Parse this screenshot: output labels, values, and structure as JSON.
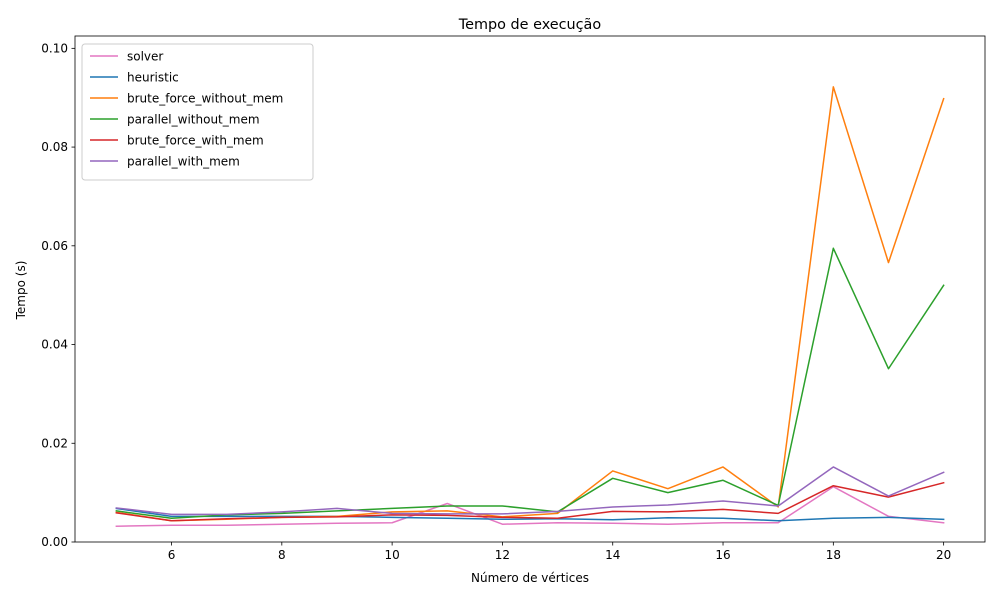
{
  "chart_data": {
    "type": "line",
    "title": "Tempo de execução",
    "xlabel": "Número de vértices",
    "ylabel": "Tempo (s)",
    "xlim": [
      4.25,
      20.75
    ],
    "ylim": [
      0,
      0.1025
    ],
    "xticks": [
      6,
      8,
      10,
      12,
      14,
      16,
      18,
      20
    ],
    "xtick_labels": [
      "6",
      "8",
      "10",
      "12",
      "14",
      "16",
      "18",
      "20"
    ],
    "yticks": [
      0,
      0.02,
      0.04,
      0.06,
      0.08,
      0.1
    ],
    "ytick_labels": [
      "0.00",
      "0.02",
      "0.04",
      "0.06",
      "0.08",
      "0.10"
    ],
    "grid": false,
    "legend_position": "top-left",
    "x": [
      5,
      6,
      7,
      8,
      9,
      10,
      11,
      12,
      13,
      14,
      15,
      16,
      17,
      18,
      19,
      20
    ],
    "series": [
      {
        "name": "solver",
        "color": "#e377c2",
        "values": [
          0.0032,
          0.0034,
          0.0034,
          0.0036,
          0.0038,
          0.0039,
          0.0078,
          0.0036,
          0.0039,
          0.0038,
          0.0036,
          0.0039,
          0.0039,
          0.0112,
          0.0052,
          0.0039
        ]
      },
      {
        "name": "heuristic",
        "color": "#1f77b4",
        "values": [
          0.0068,
          0.0052,
          0.0052,
          0.0052,
          0.0052,
          0.005,
          0.0048,
          0.0046,
          0.0047,
          0.0045,
          0.0049,
          0.0048,
          0.0043,
          0.0048,
          0.005,
          0.0046
        ]
      },
      {
        "name": "brute_force_without_mem",
        "color": "#ff7f0e",
        "values": [
          0.006,
          0.0043,
          0.0046,
          0.005,
          0.0052,
          0.0061,
          0.0063,
          0.0051,
          0.0058,
          0.0144,
          0.0108,
          0.0152,
          0.0071,
          0.0922,
          0.0566,
          0.0898
        ]
      },
      {
        "name": "parallel_without_mem",
        "color": "#2ca02c",
        "values": [
          0.0063,
          0.0048,
          0.0055,
          0.0058,
          0.0063,
          0.0068,
          0.0073,
          0.0073,
          0.0061,
          0.0129,
          0.01,
          0.0125,
          0.0074,
          0.0595,
          0.0351,
          0.052
        ]
      },
      {
        "name": "brute_force_with_mem",
        "color": "#d62728",
        "values": [
          0.0059,
          0.0043,
          0.0047,
          0.005,
          0.0051,
          0.0055,
          0.0054,
          0.005,
          0.0048,
          0.0062,
          0.0061,
          0.0066,
          0.0058,
          0.0114,
          0.0091,
          0.012
        ]
      },
      {
        "name": "parallel_with_mem",
        "color": "#9467bd",
        "values": [
          0.0069,
          0.0056,
          0.0056,
          0.0061,
          0.0068,
          0.0058,
          0.0057,
          0.0057,
          0.0062,
          0.0071,
          0.0075,
          0.0083,
          0.0073,
          0.0152,
          0.0093,
          0.0141
        ]
      }
    ]
  }
}
